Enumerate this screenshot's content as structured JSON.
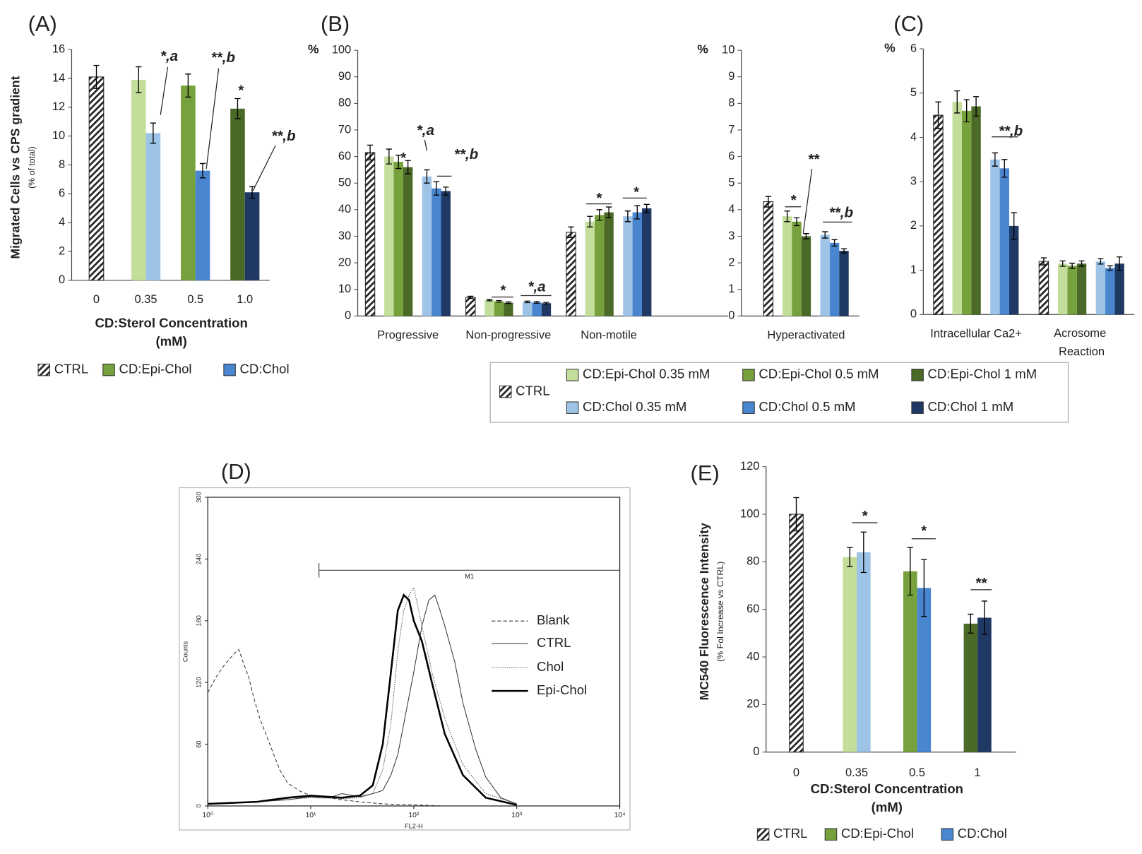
{
  "chart_data": [
    {
      "type": "bar",
      "panel": "(A)",
      "ylabel": "Migrated Cells vs CPS gradient",
      "ylabel_sub": "(% of total)",
      "xlabel": [
        "CD:Sterol Concentration",
        "(mM)"
      ],
      "categories": [
        "0",
        "0.35",
        "0.5",
        "1.0"
      ],
      "ylim": [
        0,
        16
      ],
      "yticks": [
        0,
        2,
        4,
        6,
        8,
        10,
        12,
        14,
        16
      ],
      "series": [
        {
          "name": "CTRL",
          "color": "#222222",
          "pattern": "hatch",
          "values": [
            14.1,
            null,
            null,
            null
          ],
          "errors": [
            0.8,
            null,
            null,
            null
          ]
        },
        {
          "name": "CD:Epi-Chol",
          "color": "#77a13c",
          "colors": [
            null,
            "#c3dd9b",
            "#77a13c",
            "#4c6a27"
          ],
          "values": [
            null,
            13.9,
            13.5,
            11.9
          ],
          "errors": [
            null,
            0.9,
            0.8,
            0.7
          ]
        },
        {
          "name": "CD:Chol",
          "color": "#4a86d0",
          "colors": [
            null,
            "#9dc3e6",
            "#4a86d0",
            "#1f3864"
          ],
          "values": [
            null,
            10.2,
            7.6,
            6.1
          ],
          "errors": [
            null,
            0.7,
            0.5,
            0.4
          ]
        }
      ],
      "annotations": [
        "*,a",
        "**,b",
        "*",
        "**,b"
      ]
    },
    {
      "type": "bar",
      "panel": "(B)",
      "unit": "%",
      "categories": [
        "Progressive",
        "Non-progressive",
        "Non-motile"
      ],
      "ylim": [
        0,
        100
      ],
      "yticks": [
        0,
        10,
        20,
        30,
        40,
        50,
        60,
        70,
        80,
        90,
        100
      ],
      "series": [
        {
          "name": "CTRL",
          "color": "#222222",
          "pattern": "hatch",
          "values": [
            61.5,
            7,
            31.5
          ],
          "errors": [
            2.8,
            0.4,
            2
          ]
        },
        {
          "name": "CD:Epi-Chol 0.35 mM",
          "color": "#c3dd9b",
          "values": [
            60,
            6,
            35.5
          ],
          "errors": [
            2.8,
            0.3,
            2
          ]
        },
        {
          "name": "CD:Epi-Chol 0.5 mM",
          "color": "#77a13c",
          "values": [
            58,
            5.5,
            38
          ],
          "errors": [
            2.5,
            0.3,
            2
          ]
        },
        {
          "name": "CD:Epi-Chol 1 mM",
          "color": "#4c6a27",
          "values": [
            56,
            5,
            39
          ],
          "errors": [
            2.5,
            0.3,
            2
          ]
        },
        {
          "name": "CD:Chol 0.35 mM",
          "color": "#9dc3e6",
          "values": [
            52.5,
            5.3,
            37.5
          ],
          "errors": [
            2.5,
            0.3,
            2
          ]
        },
        {
          "name": "CD:Chol 0.5 mM",
          "color": "#4a86d0",
          "values": [
            48,
            5.1,
            39
          ],
          "errors": [
            2.5,
            0.3,
            2.5
          ]
        },
        {
          "name": "CD:Chol 1 mM",
          "color": "#1f3864",
          "values": [
            47,
            4.8,
            40.5
          ],
          "errors": [
            1.5,
            0.3,
            1.5
          ]
        }
      ],
      "annotations": [
        "*",
        "*,a",
        "**,b",
        "*",
        "*,a",
        "*",
        "*"
      ]
    },
    {
      "type": "bar",
      "unit": "%",
      "categories": [
        "Hyperactivated"
      ],
      "ylim": [
        0,
        10
      ],
      "yticks": [
        0,
        1,
        2,
        3,
        4,
        5,
        6,
        7,
        8,
        9,
        10
      ],
      "series": [
        {
          "color": "#222222",
          "pattern": "hatch",
          "values": [
            4.3
          ],
          "errors": [
            0.2
          ]
        },
        {
          "color": "#c3dd9b",
          "values": [
            3.75
          ],
          "errors": [
            0.2
          ]
        },
        {
          "color": "#77a13c",
          "values": [
            3.55
          ],
          "errors": [
            0.15
          ]
        },
        {
          "color": "#4c6a27",
          "values": [
            3.0
          ],
          "errors": [
            0.1
          ]
        },
        {
          "color": "#9dc3e6",
          "values": [
            3.05
          ],
          "errors": [
            0.12
          ]
        },
        {
          "color": "#4a86d0",
          "values": [
            2.75
          ],
          "errors": [
            0.12
          ]
        },
        {
          "color": "#1f3864",
          "values": [
            2.45
          ],
          "errors": [
            0.08
          ]
        }
      ],
      "annotations": [
        "*",
        "**",
        "**,b"
      ]
    },
    {
      "type": "bar",
      "panel": "(C)",
      "unit": "%",
      "categories": [
        "Intracellular Ca2+",
        "Acrosome Reaction"
      ],
      "ylim": [
        0,
        6
      ],
      "yticks": [
        0,
        1,
        2,
        3,
        4,
        5,
        6
      ],
      "series": [
        {
          "color": "#222222",
          "pattern": "hatch",
          "values": [
            4.5,
            1.2
          ],
          "errors": [
            0.3,
            0.08
          ]
        },
        {
          "color": "#c3dd9b",
          "values": [
            4.8,
            1.15
          ],
          "errors": [
            0.25,
            0.06
          ]
        },
        {
          "color": "#77a13c",
          "values": [
            4.6,
            1.1
          ],
          "errors": [
            0.25,
            0.06
          ]
        },
        {
          "color": "#4c6a27",
          "values": [
            4.7,
            1.15
          ],
          "errors": [
            0.22,
            0.06
          ]
        },
        {
          "color": "#9dc3e6",
          "values": [
            3.5,
            1.2
          ],
          "errors": [
            0.15,
            0.06
          ]
        },
        {
          "color": "#4a86d0",
          "values": [
            3.3,
            1.05
          ],
          "errors": [
            0.2,
            0.05
          ]
        },
        {
          "color": "#1f3864",
          "values": [
            2.0,
            1.15
          ],
          "errors": [
            0.3,
            0.15
          ]
        }
      ],
      "annotations": [
        "**,b"
      ]
    },
    {
      "type": "line",
      "panel": "(D)",
      "xlabel": "FL2-H",
      "ylabel": "Counts",
      "xscale": "log",
      "xlim": [
        1,
        10000
      ],
      "xticks": [
        {
          "value": 1,
          "label": "10⁰"
        },
        {
          "value": 10,
          "label": "10¹"
        },
        {
          "value": 100,
          "label": "10²"
        },
        {
          "value": 1000,
          "label": "10³"
        },
        {
          "value": 10000,
          "label": "10⁴"
        }
      ],
      "ylim": [
        0,
        300
      ],
      "yticks": [
        0,
        60,
        120,
        180,
        240,
        300
      ],
      "gate": {
        "label": "M1",
        "x": [
          12,
          10000
        ],
        "y": 229
      },
      "series": [
        {
          "name": "Blank",
          "color": "#333333",
          "style": "dashed",
          "width": 1,
          "x": [
            1,
            1.2,
            1.4,
            1.6,
            1.8,
            2,
            2.2,
            2.5,
            2.8,
            3.2,
            3.6,
            4,
            5,
            6,
            8,
            10,
            15,
            20,
            30,
            50,
            100,
            200
          ],
          "values": [
            110,
            125,
            135,
            142,
            148,
            152,
            140,
            125,
            105,
            85,
            72,
            60,
            35,
            22,
            14,
            10,
            8,
            6,
            4,
            2,
            1,
            0
          ]
        },
        {
          "name": "CTRL",
          "color": "#333333",
          "style": "solid",
          "width": 1,
          "x": [
            1,
            3,
            6,
            10,
            15,
            20,
            30,
            40,
            50,
            60,
            70,
            80,
            100,
            120,
            140,
            160,
            180,
            200,
            250,
            300,
            400,
            500,
            700,
            1000
          ],
          "values": [
            2,
            4,
            6,
            9,
            8,
            12,
            9,
            12,
            15,
            30,
            50,
            80,
            130,
            175,
            200,
            205,
            190,
            175,
            140,
            100,
            55,
            28,
            8,
            2
          ]
        },
        {
          "name": "Chol",
          "color": "#555555",
          "style": "dotted",
          "width": 1,
          "x": [
            1,
            3,
            10,
            20,
            30,
            40,
            50,
            60,
            70,
            80,
            90,
            100,
            120,
            150,
            200,
            300,
            500,
            1000
          ],
          "values": [
            2,
            4,
            8,
            7,
            8,
            12,
            35,
            80,
            150,
            190,
            205,
            212,
            175,
            130,
            85,
            40,
            12,
            2
          ]
        },
        {
          "name": "Epi-Chol",
          "color": "#000000",
          "style": "solid",
          "width": 2.5,
          "x": [
            1,
            3,
            6,
            10,
            20,
            30,
            40,
            50,
            60,
            70,
            80,
            90,
            100,
            120,
            150,
            200,
            300,
            500,
            1000
          ],
          "values": [
            2,
            4,
            8,
            10,
            8,
            10,
            20,
            60,
            130,
            190,
            205,
            200,
            180,
            160,
            120,
            70,
            30,
            8,
            1
          ]
        }
      ]
    },
    {
      "type": "bar",
      "panel": "(E)",
      "ylabel": "MC540 Fluorescence Intensity",
      "ylabel_sub": "(% Fol Increase vs CTRL)",
      "xlabel": [
        "CD:Sterol Concentration",
        "(mM)"
      ],
      "categories": [
        "0",
        "0.35",
        "0.5",
        "1"
      ],
      "ylim": [
        0,
        120
      ],
      "yticks": [
        0,
        20,
        40,
        60,
        80,
        100,
        120
      ],
      "series": [
        {
          "name": "CTRL",
          "color": "#222222",
          "pattern": "hatch",
          "values": [
            100,
            null,
            null,
            null
          ],
          "errors": [
            7,
            null,
            null,
            null
          ]
        },
        {
          "name": "CD:Epi-Chol",
          "color": "#77a13c",
          "colors": [
            null,
            "#c3dd9b",
            "#77a13c",
            "#4c6a27"
          ],
          "values": [
            null,
            82,
            76,
            54
          ],
          "errors": [
            null,
            4,
            10,
            4
          ]
        },
        {
          "name": "CD:Chol",
          "color": "#4a86d0",
          "colors": [
            null,
            "#9dc3e6",
            "#4a86d0",
            "#1f3864"
          ],
          "values": [
            null,
            84,
            69,
            56.5
          ],
          "errors": [
            null,
            8.5,
            12,
            7
          ]
        }
      ],
      "annotations": [
        "*",
        "*",
        "**"
      ]
    }
  ]
}
